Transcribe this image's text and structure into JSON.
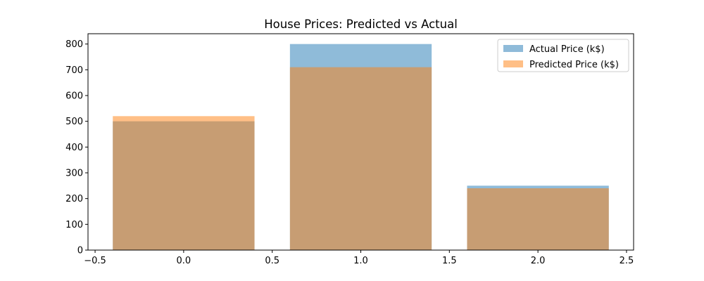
{
  "chart_data": {
    "type": "bar",
    "title": "House Prices: Predicted vs Actual",
    "xlabel": "",
    "ylabel": "",
    "x": [
      0,
      1,
      2
    ],
    "series": [
      {
        "name": "Actual Price (k$)",
        "values": [
          500,
          800,
          250
        ],
        "color": "#1f77b4",
        "alpha": 0.5
      },
      {
        "name": "Predicted Price (k$)",
        "values": [
          520,
          710,
          240
        ],
        "color": "#ff7f0e",
        "alpha": 0.5
      }
    ],
    "bar_width": 0.8,
    "xlim": [
      -0.54,
      2.54
    ],
    "ylim": [
      0,
      840
    ],
    "xticks": [
      -0.5,
      0.0,
      0.5,
      1.0,
      1.5,
      2.0,
      2.5
    ],
    "xtick_labels": [
      "−0.5",
      "0.0",
      "0.5",
      "1.0",
      "1.5",
      "2.0",
      "2.5"
    ],
    "yticks": [
      0,
      100,
      200,
      300,
      400,
      500,
      600,
      700,
      800
    ],
    "ytick_labels": [
      "0",
      "100",
      "200",
      "300",
      "400",
      "500",
      "600",
      "700",
      "800"
    ],
    "grid": false,
    "legend_position": "top-right"
  }
}
